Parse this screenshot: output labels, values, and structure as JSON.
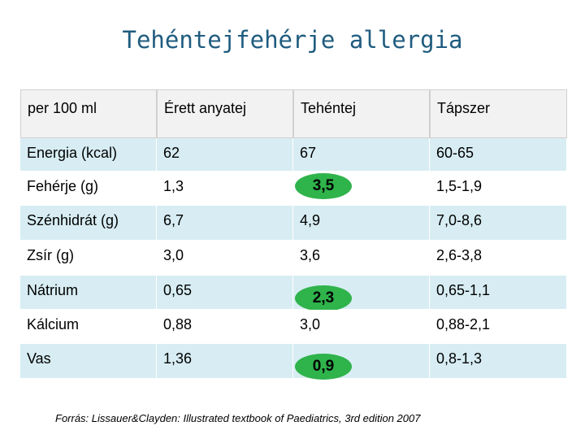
{
  "title": "Tehéntejfehérje allergia",
  "table": {
    "header": [
      "per 100 ml",
      "Érett anyatej",
      "Tehéntej",
      "Tápszer"
    ],
    "rows": [
      [
        "Energia (kcal)",
        "62",
        "67",
        "60-65"
      ],
      [
        "Fehérje (g)",
        "1,3",
        "3,5",
        "1,5-1,9"
      ],
      [
        "Szénhidrát (g)",
        "6,7",
        "4,9",
        "7,0-8,6"
      ],
      [
        "Zsír (g)",
        "3,0",
        "3,6",
        "2,6-3,8"
      ],
      [
        "Nátrium",
        "0,65",
        "2,3",
        "0,65-1,1"
      ],
      [
        "Kálcium",
        "0,88",
        "3,0",
        "0,88-2,1"
      ],
      [
        "Vas",
        "1,36",
        "0,9",
        "0,8-1,3"
      ]
    ]
  },
  "footnote": "Forrás: Lissauer&Clayden: Illustrated textbook of Paediatrics, 3rd edition 2007"
}
